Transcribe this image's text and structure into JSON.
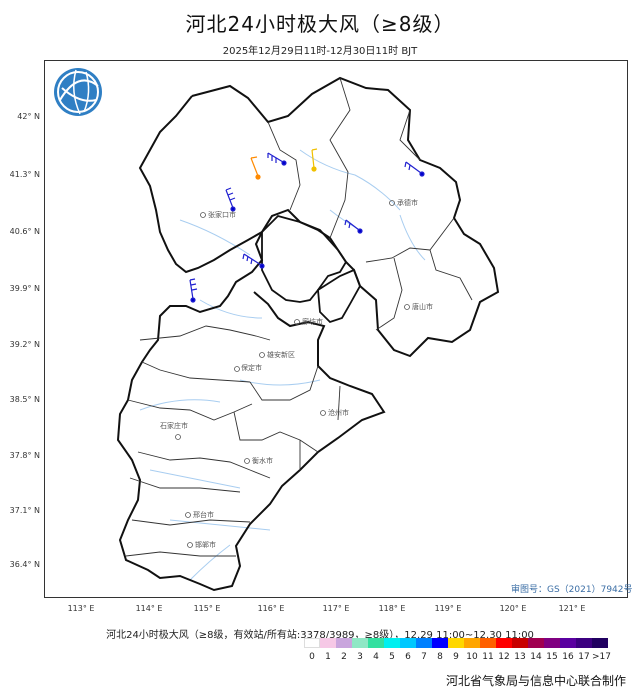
{
  "title": "河北24小时极大风（≥8级）",
  "subtitle": "2025年12月29日11时-12月30日11时 BJT",
  "review_no": "审图号：GS（2021）7942号",
  "legend_title": "河北24小时极大风（≥8级，有效站/所有站:3378/3989，≥8级），12.29 11:00~12.30 11:00",
  "legend_labels": [
    "0",
    "1",
    "2",
    "3",
    "4",
    "5",
    "6",
    "7",
    "8",
    "9",
    "10",
    "11",
    "12",
    "13",
    "14",
    "15",
    "16",
    "17",
    ">17"
  ],
  "legend_colors": [
    "#ffffff",
    "#f6c8e6",
    "#c9a5dd",
    "#8fe7c5",
    "#33e0a0",
    "#00f0f0",
    "#00c8ff",
    "#0080ff",
    "#0000ff",
    "#ffd700",
    "#ffa500",
    "#ff6000",
    "#ff0000",
    "#c80000",
    "#a00050",
    "#800080",
    "#5a00a0",
    "#3c0080",
    "#200060"
  ],
  "footer": "河北省气象局与信息中心联合制作",
  "lat_ticks": [
    "42° N",
    "41.3° N",
    "40.6° N",
    "39.9° N",
    "39.2° N",
    "38.5° N",
    "37.8° N",
    "37.1° N",
    "36.4° N"
  ],
  "lon_ticks": [
    "113° E",
    "114° E",
    "115° E",
    "116° E",
    "117° E",
    "118° E",
    "119° E",
    "120° E",
    "121° E"
  ],
  "cities": [
    "张家口市",
    "承德市",
    "唐山市",
    "廊坊市",
    "雄安新区",
    "保定市",
    "沧州市",
    "石家庄市",
    "衡水市",
    "邢台市",
    "邯郸市"
  ],
  "icons": {
    "logo": "globe-logo-icon"
  }
}
